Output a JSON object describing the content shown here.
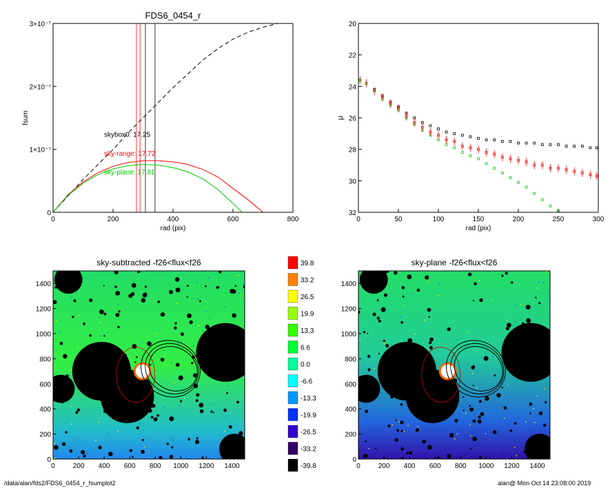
{
  "footer": {
    "path": "/data/alan/fds2/FDS6_0454_r_fsumplot2",
    "stamp": "alan@  Mon Oct 14 23:08:00 2019"
  },
  "colors": {
    "black_curve": "#000000",
    "sky_range": "#ff0000",
    "sky_plane": "#00cc00",
    "background": "#ffffff"
  },
  "chart_data": [
    {
      "type": "line",
      "title": "FDS6_0454_r",
      "xlabel": "rad (pix)",
      "ylabel": "fsum",
      "xlim": [
        0,
        800
      ],
      "ylim": [
        0,
        3e-07
      ],
      "x_ticks": [
        0,
        200,
        400,
        600,
        800
      ],
      "y_ticks": [
        0,
        1e-07,
        2e-07,
        3e-07
      ],
      "y_tick_labels": [
        "0",
        "1×10⁻⁷",
        "2×10⁻⁷",
        "3×10⁻⁷"
      ],
      "vlines": [
        {
          "x": 278,
          "color": "#ff0000"
        },
        {
          "x": 290,
          "color": "#ff0000"
        },
        {
          "x": 308,
          "color": "#000000"
        },
        {
          "x": 340,
          "color": "#000000"
        }
      ],
      "annotations": [
        {
          "text": "skybox0: 17.25",
          "x": 170,
          "y": 1.2e-07,
          "color": "#000000"
        },
        {
          "text": "sky-range: 17.72",
          "x": 170,
          "y": 9e-08,
          "color": "#ff0000"
        },
        {
          "text": "sky-plane: 17.81",
          "x": 170,
          "y": 6e-08,
          "color": "#00cc00"
        }
      ],
      "series": [
        {
          "color": "#000000",
          "dash": true,
          "x": [
            0,
            50,
            100,
            150,
            200,
            250,
            300,
            350,
            400,
            450,
            500,
            550,
            600,
            650,
            700,
            750
          ],
          "y": [
            0,
            2.6e-08,
            5.2e-08,
            7.6e-08,
            1e-07,
            1.26e-07,
            1.5e-07,
            1.74e-07,
            1.98e-07,
            2.2e-07,
            2.42e-07,
            2.6e-07,
            2.75e-07,
            2.86e-07,
            2.94e-07,
            3e-07
          ]
        },
        {
          "color": "#ff0000",
          "dash": false,
          "x": [
            0,
            50,
            100,
            150,
            200,
            250,
            300,
            350,
            400,
            450,
            500,
            550,
            600,
            650,
            700
          ],
          "y": [
            0,
            2.8e-08,
            4.8e-08,
            6.3e-08,
            7.3e-08,
            7.9e-08,
            8.2e-08,
            8.2e-08,
            8e-08,
            7.6e-08,
            6.8e-08,
            5.6e-08,
            3.8e-08,
            2e-08,
            0
          ]
        },
        {
          "color": "#00cc00",
          "dash": false,
          "x": [
            0,
            50,
            100,
            150,
            200,
            250,
            300,
            350,
            400,
            450,
            500,
            550,
            600,
            630
          ],
          "y": [
            0,
            2.7e-08,
            4.6e-08,
            6e-08,
            6.9e-08,
            7.4e-08,
            7.6e-08,
            7.5e-08,
            7.1e-08,
            6.4e-08,
            5.3e-08,
            3.6e-08,
            1.4e-08,
            0
          ]
        }
      ]
    },
    {
      "type": "scatter",
      "title": "",
      "xlabel": "rad (pix)",
      "ylabel": "μ",
      "xlim": [
        0,
        300
      ],
      "ylim": [
        32,
        20
      ],
      "x_ticks": [
        0,
        50,
        100,
        150,
        200,
        250,
        300
      ],
      "y_ticks": [
        20,
        22,
        24,
        26,
        28,
        30,
        32
      ],
      "series": [
        {
          "color": "#000000",
          "x": [
            2,
            10,
            20,
            30,
            40,
            50,
            60,
            70,
            80,
            90,
            100,
            110,
            120,
            130,
            140,
            150,
            160,
            170,
            180,
            190,
            200,
            210,
            220,
            230,
            240,
            250,
            260,
            270,
            280,
            290,
            298
          ],
          "y": [
            23.6,
            23.8,
            24.2,
            24.6,
            25.0,
            25.3,
            25.7,
            26.0,
            26.3,
            26.5,
            26.7,
            26.9,
            27.0,
            27.1,
            27.2,
            27.3,
            27.4,
            27.4,
            27.5,
            27.5,
            27.6,
            27.6,
            27.6,
            27.7,
            27.7,
            27.7,
            27.8,
            27.8,
            27.8,
            27.9,
            27.9
          ]
        },
        {
          "color": "#ff0000",
          "x": [
            2,
            10,
            20,
            30,
            40,
            50,
            60,
            70,
            80,
            90,
            100,
            110,
            120,
            130,
            140,
            150,
            160,
            170,
            180,
            190,
            200,
            210,
            220,
            230,
            240,
            250,
            260,
            270,
            280,
            290,
            298
          ],
          "y": [
            23.6,
            23.8,
            24.3,
            24.7,
            25.1,
            25.4,
            25.9,
            26.3,
            26.6,
            26.9,
            27.1,
            27.4,
            27.5,
            27.8,
            27.9,
            28.0,
            28.2,
            28.3,
            28.5,
            28.6,
            28.7,
            28.8,
            29.0,
            29.0,
            29.2,
            29.2,
            29.3,
            29.4,
            29.5,
            29.6,
            29.7
          ]
        },
        {
          "color": "#00cc00",
          "x": [
            2,
            10,
            20,
            30,
            40,
            50,
            60,
            70,
            80,
            90,
            100,
            110,
            120,
            130,
            140,
            150,
            160,
            170,
            180,
            190,
            200,
            210,
            220,
            230,
            240,
            250
          ],
          "y": [
            23.6,
            23.8,
            24.3,
            24.8,
            25.2,
            25.5,
            26.0,
            26.4,
            26.8,
            27.1,
            27.4,
            27.7,
            27.9,
            28.2,
            28.4,
            28.6,
            28.9,
            29.2,
            29.5,
            29.8,
            30.1,
            30.4,
            30.8,
            31.2,
            31.6,
            31.9
          ]
        }
      ]
    },
    {
      "type": "heatmap",
      "title": "sky-subtracted -f26<flux<f26",
      "xlim": [
        0,
        1500
      ],
      "ylim": [
        0,
        1500
      ],
      "x_ticks": [
        0,
        200,
        400,
        600,
        800,
        1000,
        1200,
        1400
      ],
      "y_ticks": [
        0,
        200,
        400,
        600,
        800,
        1000,
        1200,
        1400
      ],
      "masks": [
        {
          "x": 380,
          "y": 700,
          "r": 230
        },
        {
          "x": 580,
          "y": 500,
          "r": 210
        },
        {
          "x": 1350,
          "y": 850,
          "r": 230
        },
        {
          "x": 60,
          "y": 560,
          "r": 110
        },
        {
          "x": 120,
          "y": 1430,
          "r": 110
        },
        {
          "x": 1420,
          "y": 80,
          "r": 120
        }
      ],
      "galaxy": {
        "x": 700,
        "y": 700
      },
      "ellipses": [
        {
          "x": 920,
          "y": 720,
          "rx": 520,
          "ry": 260,
          "angle": 60
        },
        {
          "x": 930,
          "y": 720,
          "rx": 470,
          "ry": 230,
          "angle": 60
        },
        {
          "x": 940,
          "y": 720,
          "rx": 430,
          "ry": 200,
          "angle": 60
        }
      ]
    },
    {
      "type": "heatmap",
      "title": "sky-plane -f26<flux<f26",
      "xlim": [
        0,
        1500
      ],
      "ylim": [
        0,
        1500
      ],
      "x_ticks": [
        0,
        200,
        400,
        600,
        800,
        1000,
        1200,
        1400
      ],
      "y_ticks": [
        0,
        200,
        400,
        600,
        800,
        1000,
        1200,
        1400
      ],
      "masks": [
        {
          "x": 380,
          "y": 700,
          "r": 230
        },
        {
          "x": 580,
          "y": 500,
          "r": 210
        },
        {
          "x": 1350,
          "y": 850,
          "r": 230
        },
        {
          "x": 60,
          "y": 560,
          "r": 110
        },
        {
          "x": 120,
          "y": 1430,
          "r": 110
        },
        {
          "x": 1420,
          "y": 80,
          "r": 120
        }
      ],
      "galaxy": {
        "x": 700,
        "y": 700
      },
      "ellipses": [
        {
          "x": 920,
          "y": 720,
          "rx": 520,
          "ry": 260,
          "angle": 60
        },
        {
          "x": 930,
          "y": 720,
          "rx": 470,
          "ry": 230,
          "angle": 60
        },
        {
          "x": 940,
          "y": 720,
          "rx": 430,
          "ry": 200,
          "angle": 60
        }
      ]
    },
    {
      "type": "colorbar",
      "labels": [
        "39.8",
        "33.2",
        "26.5",
        "19.9",
        "13.3",
        "6.6",
        "0.0",
        "-6.6",
        "-13.3",
        "-19.9",
        "-26.5",
        "-33.2",
        "-39.8"
      ],
      "colors": [
        "#ff0000",
        "#ff8000",
        "#ffff00",
        "#99ff00",
        "#33ff00",
        "#00ff33",
        "#00ff99",
        "#00ffff",
        "#0099ff",
        "#0033ff",
        "#3300cc",
        "#330066",
        "#000000"
      ]
    }
  ]
}
